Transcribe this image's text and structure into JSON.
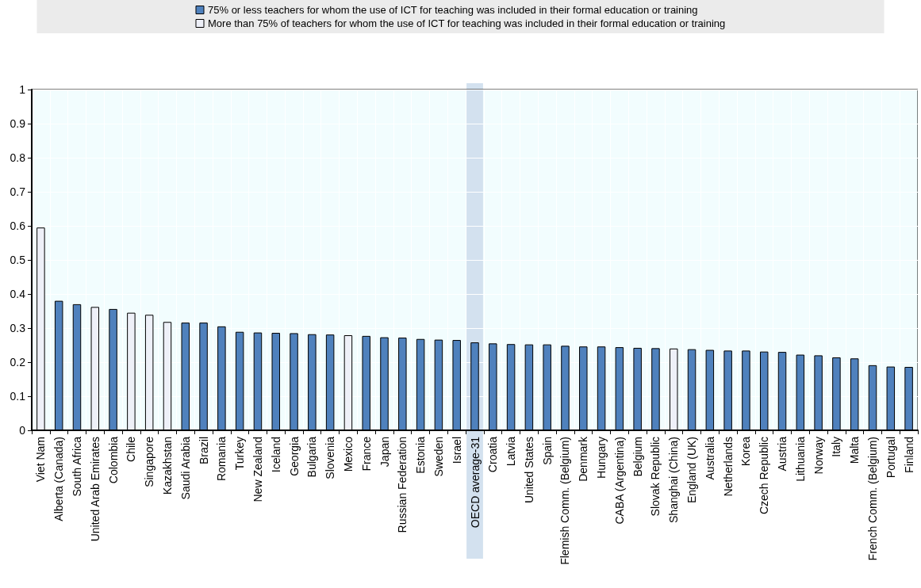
{
  "chart_data": {
    "type": "bar",
    "categories": [
      "Viet Nam",
      "Alberta (Canada)",
      "South Africa",
      "United Arab Emirates",
      "Colombia",
      "Chile",
      "Singapore",
      "Kazakhstan",
      "Saudi Arabia",
      "Brazil",
      "Romania",
      "Turkey",
      "New Zealand",
      "Iceland",
      "Georgia",
      "Bulgaria",
      "Slovenia",
      "Mexico",
      "France",
      "Japan",
      "Russian Federation",
      "Estonia",
      "Sweden",
      "Israel",
      "OECD average-31",
      "Croatia",
      "Latvia",
      "United States",
      "Spain",
      "Flemish Comm. (Belgium)",
      "Denmark",
      "Hungary",
      "CABA (Argentina)",
      "Belgium",
      "Slovak Republic",
      "Shanghai (China)",
      "England (UK)",
      "Australia",
      "Netherlands",
      "Korea",
      "Czech Republic",
      "Austria",
      "Lithuania",
      "Norway",
      "Italy",
      "Malta",
      "French Comm. (Belgium)",
      "Portugal",
      "Finland"
    ],
    "series": [
      {
        "name": "75% or less teachers for whom the use of ICT for teaching was included in their formal education or training",
        "color": "#4f81bd",
        "values": [
          null,
          0.38,
          0.37,
          null,
          0.356,
          null,
          null,
          null,
          0.316,
          0.316,
          0.305,
          0.289,
          0.287,
          0.286,
          0.285,
          0.282,
          0.281,
          null,
          0.277,
          0.273,
          0.272,
          0.268,
          0.266,
          0.265,
          0.258,
          0.255,
          0.253,
          0.252,
          0.252,
          0.248,
          0.246,
          0.246,
          0.244,
          0.242,
          0.241,
          null,
          0.238,
          0.236,
          0.234,
          0.234,
          0.231,
          0.23,
          0.222,
          0.22,
          0.214,
          0.211,
          0.191,
          0.187,
          0.186
        ]
      },
      {
        "name": "More than 75% of teachers for whom the use of ICT for teaching was included in their formal education or training",
        "color": "#eef0f8",
        "values": [
          0.595,
          null,
          null,
          0.362,
          null,
          0.345,
          0.339,
          0.318,
          null,
          null,
          null,
          null,
          null,
          null,
          null,
          null,
          null,
          0.279,
          null,
          null,
          null,
          null,
          null,
          null,
          null,
          null,
          null,
          null,
          null,
          null,
          null,
          null,
          null,
          null,
          null,
          0.24,
          null,
          null,
          null,
          null,
          null,
          null,
          null,
          null,
          null,
          null,
          null,
          null,
          null
        ]
      }
    ],
    "ylim": [
      0,
      1
    ],
    "yticks": [
      0,
      0.1,
      0.2,
      0.3,
      0.4,
      0.5,
      0.6,
      0.7,
      0.8,
      0.9,
      1
    ],
    "bands": [
      {
        "axis": "x",
        "from": "OECD average-31",
        "to": "OECD average-31",
        "color": "#d3e1ef"
      }
    ],
    "grid": true,
    "legend": "top"
  }
}
